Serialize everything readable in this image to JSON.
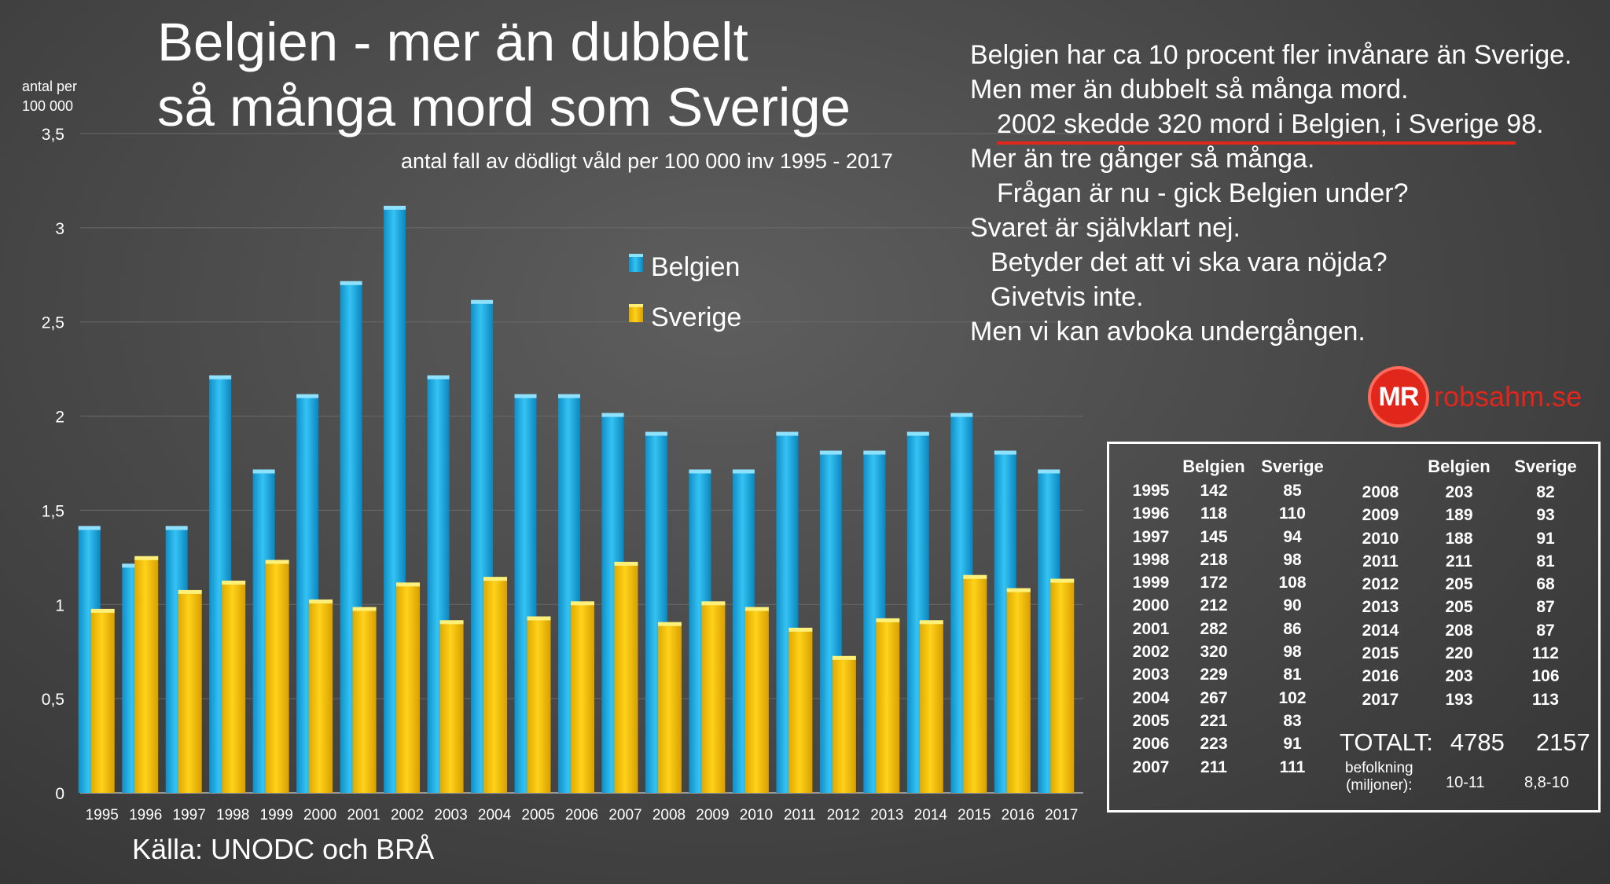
{
  "title": {
    "line1": "Belgien - mer än dubbelt",
    "line2": "så många mord som Sverige",
    "subtitle": "antal fall av dödligt våld per 100 000 inv 1995 - 2017"
  },
  "y_axis_top_label": {
    "line1": "antal per",
    "line2": "100 000"
  },
  "source": "Källa: UNODC och BRÅ",
  "commentary": [
    "Belgien har ca 10 procent fler invånare än Sverige.",
    "Men mer än dubbelt så många mord.",
    "2002 skedde 320 mord i Belgien, i Sverige 98.",
    "Mer än tre gånger så många.",
    "Frågan är nu - gick Belgien under?",
    "Svaret är självklart nej.",
    "Betyder det att vi ska vara nöjda?",
    "Givetvis inte.",
    "Men vi kan avboka undergången."
  ],
  "logo": {
    "initials": "MR",
    "site": "robsahm.se"
  },
  "colors": {
    "belgien": "#19a9e4",
    "sverige": "#f5c400",
    "accent": "#e1261c"
  },
  "chart_data": {
    "type": "bar",
    "title": "Belgien - mer än dubbelt så många mord som Sverige",
    "ylabel": "antal per 100 000",
    "ylim": [
      0,
      3.5
    ],
    "yticks": [
      "0",
      "0,5",
      "1",
      "1,5",
      "2",
      "2,5",
      "3",
      "3,5"
    ],
    "categories": [
      "1995",
      "1996",
      "1997",
      "1998",
      "1999",
      "2000",
      "2001",
      "2002",
      "2003",
      "2004",
      "2005",
      "2006",
      "2007",
      "2008",
      "2009",
      "2010",
      "2011",
      "2012",
      "2013",
      "2014",
      "2015",
      "2016",
      "2017"
    ],
    "series": [
      {
        "name": "Belgien",
        "values": [
          1.4,
          1.2,
          1.4,
          2.2,
          1.7,
          2.1,
          2.7,
          3.1,
          2.2,
          2.6,
          2.1,
          2.1,
          2.0,
          1.9,
          1.7,
          1.7,
          1.9,
          1.8,
          1.8,
          1.9,
          2.0,
          1.8,
          1.7
        ]
      },
      {
        "name": "Sverige",
        "values": [
          0.96,
          1.24,
          1.06,
          1.11,
          1.22,
          1.01,
          0.97,
          1.1,
          0.9,
          1.13,
          0.92,
          1.0,
          1.21,
          0.89,
          1.0,
          0.97,
          0.86,
          0.71,
          0.91,
          0.9,
          1.14,
          1.07,
          1.12
        ]
      }
    ],
    "legend": [
      "Belgien",
      "Sverige"
    ],
    "legend_position": "top-center",
    "grid": true
  },
  "table": {
    "headers": [
      "Belgien",
      "Sverige"
    ],
    "left": [
      [
        "1995",
        "142",
        "85"
      ],
      [
        "1996",
        "118",
        "110"
      ],
      [
        "1997",
        "145",
        "94"
      ],
      [
        "1998",
        "218",
        "98"
      ],
      [
        "1999",
        "172",
        "108"
      ],
      [
        "2000",
        "212",
        "90"
      ],
      [
        "2001",
        "282",
        "86"
      ],
      [
        "2002",
        "320",
        "98"
      ],
      [
        "2003",
        "229",
        "81"
      ],
      [
        "2004",
        "267",
        "102"
      ],
      [
        "2005",
        "221",
        "83"
      ],
      [
        "2006",
        "223",
        "91"
      ],
      [
        "2007",
        "211",
        "111"
      ]
    ],
    "right": [
      [
        "2008",
        "203",
        "82"
      ],
      [
        "2009",
        "189",
        "93"
      ],
      [
        "2010",
        "188",
        "91"
      ],
      [
        "2011",
        "211",
        "81"
      ],
      [
        "2012",
        "205",
        "68"
      ],
      [
        "2013",
        "205",
        "87"
      ],
      [
        "2014",
        "208",
        "87"
      ],
      [
        "2015",
        "220",
        "112"
      ],
      [
        "2016",
        "203",
        "106"
      ],
      [
        "2017",
        "193",
        "113"
      ]
    ],
    "total_label": "TOTALT:",
    "total_belgien": "4785",
    "total_sverige": "2157",
    "population_label_1": "befolkning",
    "population_label_2": "(miljoner):",
    "population_belgien": "10-11",
    "population_sverige": "8,8-10"
  }
}
